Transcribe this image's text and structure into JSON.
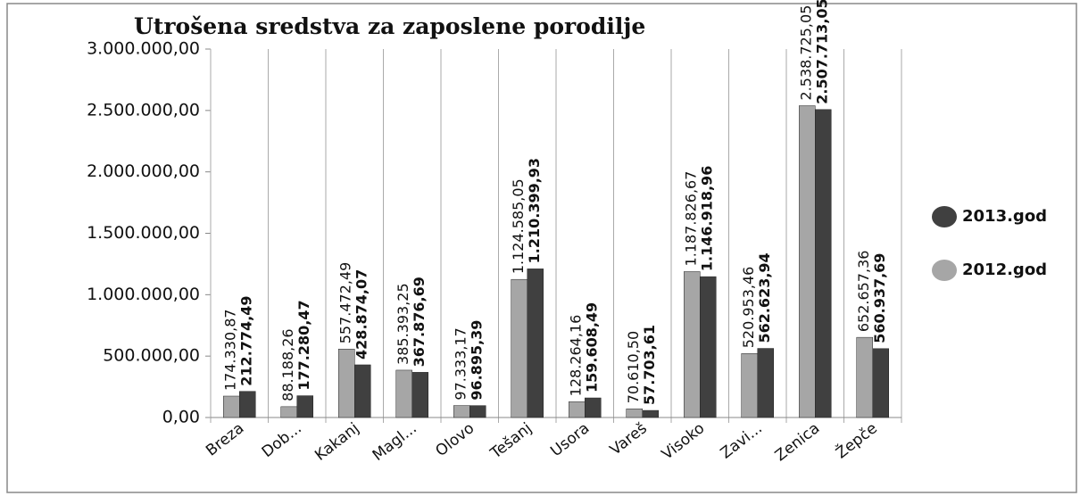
{
  "chart_data": {
    "type": "bar",
    "title": "Utrošena sredstva za zaposlene porodilje",
    "categories": [
      "Breza",
      "Dob...",
      "Kakanj",
      "Magl...",
      "Olovo",
      "Tešanj",
      "Usora",
      "Vareš",
      "Visoko",
      "Zavi...",
      "Zenica",
      "Žepče"
    ],
    "series": [
      {
        "name": "2012.god",
        "color": "#a6a6a6",
        "values": [
          174330.87,
          88188.26,
          557472.49,
          385393.25,
          97333.17,
          1124585.05,
          128264.16,
          70610.5,
          1187826.67,
          520953.46,
          2538725.05,
          652657.36
        ],
        "value_labels": [
          "174.330,87",
          "88.188,26",
          "557.472,49",
          "385.393,25",
          "97.333,17",
          "1.124.585,05",
          "128.264,16",
          "70.610,50",
          "1.187.826,67",
          "520.953,46",
          "2.538.725,05",
          "652.657,36"
        ]
      },
      {
        "name": "2013.god",
        "color": "#404040",
        "values": [
          212774.49,
          177280.47,
          428874.07,
          367876.69,
          96895.39,
          1210399.93,
          159608.49,
          57703.61,
          1146918.96,
          562623.94,
          2507713.05,
          560937.69
        ],
        "value_labels": [
          "212.774,49",
          "177.280,47",
          "428.874,07",
          "367.876,69",
          "96.895,39",
          "1.210.399,93",
          "159.608,49",
          "57.703,61",
          "1.146.918,96",
          "562.623,94",
          "2.507.713,05",
          "560.937,69"
        ]
      }
    ],
    "ylim": [
      0,
      3000000
    ],
    "yticks": [
      {
        "value": 0,
        "label": "0,00"
      },
      {
        "value": 500000,
        "label": "500.000,00"
      },
      {
        "value": 1000000,
        "label": "1.000.000,00"
      },
      {
        "value": 1500000,
        "label": "1.500.000,00"
      },
      {
        "value": 2000000,
        "label": "2.000.000,00"
      },
      {
        "value": 2500000,
        "label": "2.500.000,00"
      },
      {
        "value": 3000000,
        "label": "3.000.000,00"
      }
    ],
    "legend": "right"
  }
}
